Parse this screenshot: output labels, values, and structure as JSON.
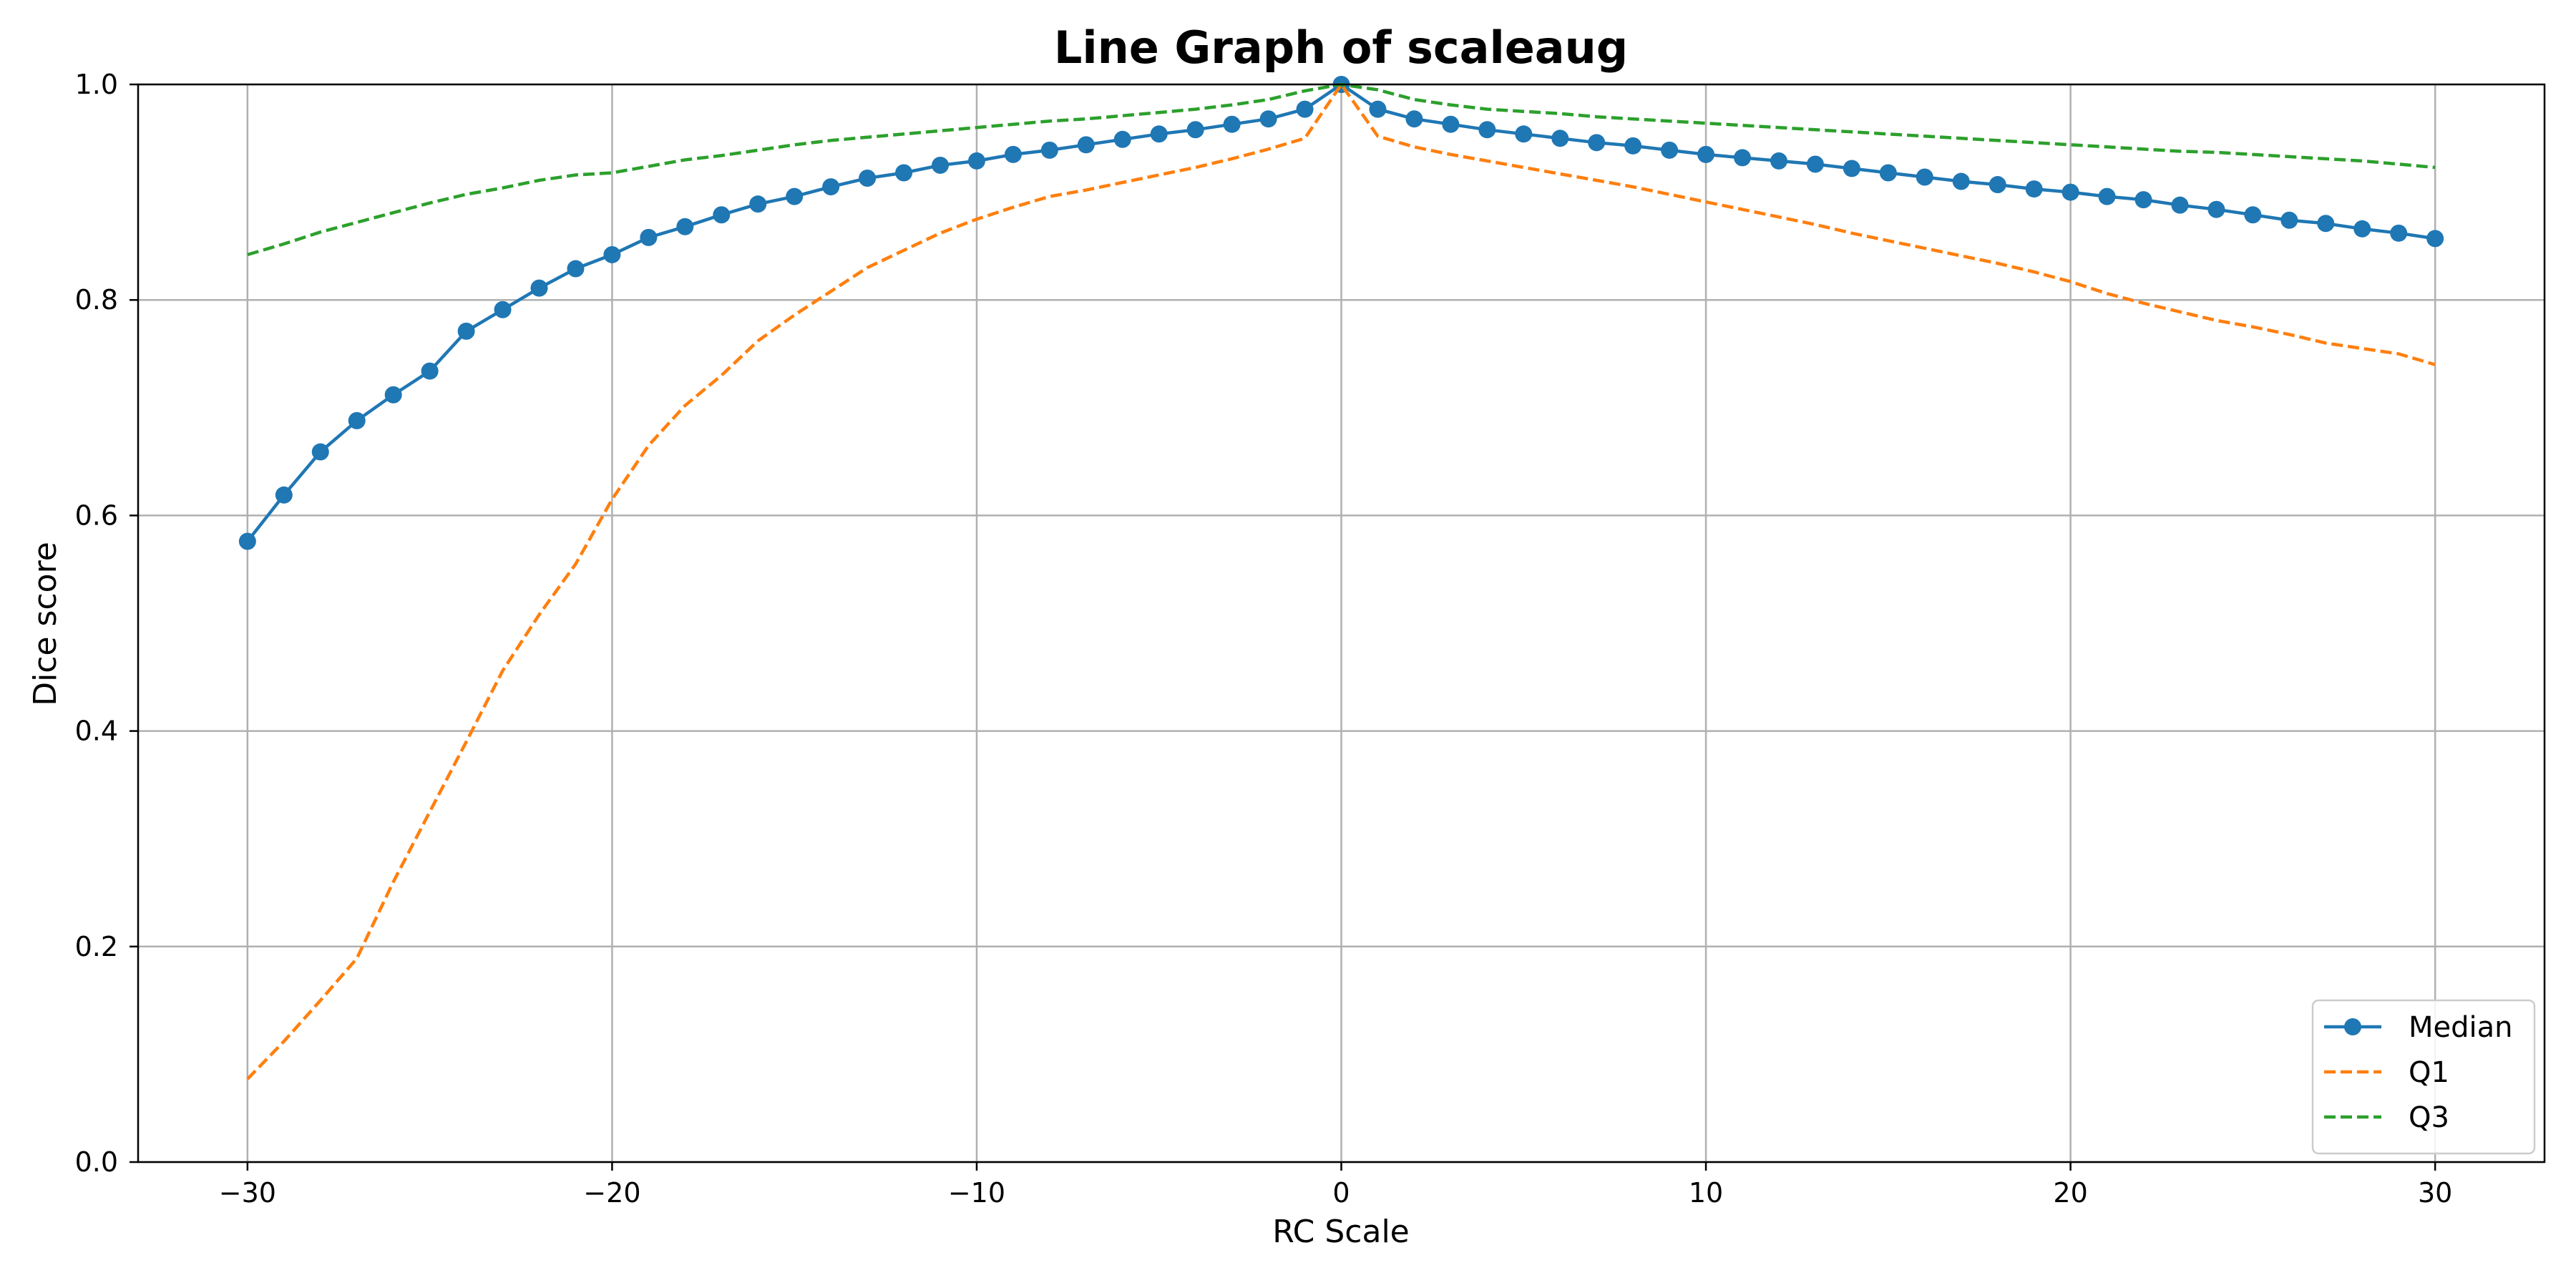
{
  "chart_data": {
    "type": "line",
    "title": "Line Graph of scaleaug",
    "xlabel": "RC Scale",
    "ylabel": "Dice score",
    "xlim": [
      -33,
      33
    ],
    "ylim": [
      0.0,
      1.0
    ],
    "xticks": [
      -30,
      -20,
      -10,
      0,
      10,
      20,
      30
    ],
    "xtick_labels": [
      "−30",
      "−20",
      "−10",
      "0",
      "10",
      "20",
      "30"
    ],
    "yticks": [
      0.0,
      0.2,
      0.4,
      0.6,
      0.8,
      1.0
    ],
    "ytick_labels": [
      "0.0",
      "0.2",
      "0.4",
      "0.6",
      "0.8",
      "1.0"
    ],
    "grid": true,
    "legend_position": "bottom-right",
    "x": [
      -30,
      -29,
      -28,
      -27,
      -26,
      -25,
      -24,
      -23,
      -22,
      -21,
      -20,
      -19,
      -18,
      -17,
      -16,
      -15,
      -14,
      -13,
      -12,
      -11,
      -10,
      -9,
      -8,
      -7,
      -6,
      -5,
      -4,
      -3,
      -2,
      -1,
      0,
      1,
      2,
      3,
      4,
      5,
      6,
      7,
      8,
      9,
      10,
      11,
      12,
      13,
      14,
      15,
      16,
      17,
      18,
      19,
      20,
      21,
      22,
      23,
      24,
      25,
      26,
      27,
      28,
      29,
      30
    ],
    "series": [
      {
        "name": "Median",
        "color": "#1f77b4",
        "style": "solid",
        "marker": "circle",
        "values": [
          0.576,
          0.619,
          0.659,
          0.688,
          0.712,
          0.734,
          0.771,
          0.791,
          0.811,
          0.829,
          0.842,
          0.858,
          0.868,
          0.879,
          0.889,
          0.896,
          0.905,
          0.913,
          0.918,
          0.925,
          0.929,
          0.935,
          0.939,
          0.944,
          0.949,
          0.954,
          0.958,
          0.963,
          0.968,
          0.977,
          1.0,
          0.977,
          0.968,
          0.963,
          0.958,
          0.954,
          0.95,
          0.946,
          0.943,
          0.939,
          0.935,
          0.932,
          0.929,
          0.926,
          0.922,
          0.918,
          0.914,
          0.91,
          0.907,
          0.903,
          0.9,
          0.896,
          0.893,
          0.888,
          0.884,
          0.879,
          0.874,
          0.871,
          0.866,
          0.862,
          0.857
        ]
      },
      {
        "name": "Q1",
        "color": "#ff7f0e",
        "style": "dashed",
        "values": [
          0.077,
          0.112,
          0.15,
          0.189,
          0.26,
          0.325,
          0.39,
          0.456,
          0.508,
          0.555,
          0.615,
          0.665,
          0.702,
          0.73,
          0.762,
          0.786,
          0.808,
          0.83,
          0.846,
          0.862,
          0.875,
          0.886,
          0.896,
          0.902,
          0.909,
          0.916,
          0.923,
          0.931,
          0.94,
          0.95,
          1.0,
          0.952,
          0.942,
          0.935,
          0.929,
          0.923,
          0.917,
          0.911,
          0.905,
          0.898,
          0.891,
          0.884,
          0.877,
          0.87,
          0.862,
          0.855,
          0.848,
          0.841,
          0.834,
          0.826,
          0.817,
          0.806,
          0.797,
          0.789,
          0.781,
          0.775,
          0.768,
          0.76,
          0.755,
          0.75,
          0.74
        ]
      },
      {
        "name": "Q3",
        "color": "#2ca02c",
        "style": "dashed",
        "values": [
          0.842,
          0.852,
          0.863,
          0.872,
          0.881,
          0.89,
          0.898,
          0.904,
          0.911,
          0.916,
          0.918,
          0.924,
          0.93,
          0.934,
          0.939,
          0.944,
          0.948,
          0.951,
          0.954,
          0.957,
          0.96,
          0.963,
          0.966,
          0.968,
          0.971,
          0.974,
          0.977,
          0.981,
          0.986,
          0.994,
          1.0,
          0.995,
          0.986,
          0.981,
          0.977,
          0.975,
          0.973,
          0.97,
          0.968,
          0.966,
          0.964,
          0.962,
          0.96,
          0.958,
          0.956,
          0.954,
          0.952,
          0.95,
          0.948,
          0.946,
          0.944,
          0.942,
          0.94,
          0.938,
          0.937,
          0.935,
          0.933,
          0.931,
          0.929,
          0.926,
          0.923
        ]
      }
    ]
  }
}
